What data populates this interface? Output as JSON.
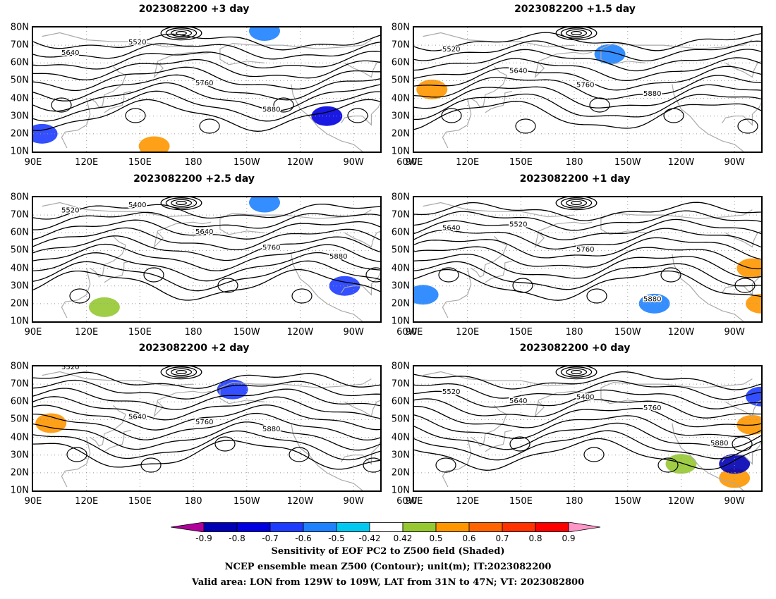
{
  "panels": [
    {
      "title": "2023082200 +3 day",
      "contours": [
        {
          "label": "5640",
          "lat": 66
        },
        {
          "label": "5520",
          "lat": 72
        },
        {
          "label": "5760",
          "lat": 49
        },
        {
          "label": "5880",
          "lat": 34
        }
      ],
      "shading": [
        {
          "lon": -105,
          "lat": 30,
          "value": -0.7
        },
        {
          "lon": -65,
          "lat": 35,
          "value": -0.6
        },
        {
          "lon": -140,
          "lat": 78,
          "value": -0.5
        },
        {
          "lon": 158,
          "lat": 13,
          "value": 0.6
        },
        {
          "lon": 95,
          "lat": 20,
          "value": -0.6
        }
      ]
    },
    {
      "title": "2023082200 +1.5 day",
      "contours": [
        {
          "label": "5520",
          "lat": 68
        },
        {
          "label": "5640",
          "lat": 56
        },
        {
          "label": "5760",
          "lat": 48
        },
        {
          "label": "5880",
          "lat": 43
        }
      ],
      "shading": [
        {
          "lon": -60,
          "lat": 77,
          "value": 0.6
        },
        {
          "lon": -55,
          "lat": 25,
          "value": -0.6
        },
        {
          "lon": -160,
          "lat": 65,
          "value": -0.5
        },
        {
          "lon": 100,
          "lat": 45,
          "value": 0.6
        }
      ]
    },
    {
      "title": "2023082200 +2.5 day",
      "contours": [
        {
          "label": "5520",
          "lat": 73
        },
        {
          "label": "5400",
          "lat": 76
        },
        {
          "label": "5640",
          "lat": 61
        },
        {
          "label": "5760",
          "lat": 52
        },
        {
          "label": "5880",
          "lat": 47
        }
      ],
      "shading": [
        {
          "lon": -60,
          "lat": 30,
          "value": -0.8
        },
        {
          "lon": -95,
          "lat": 30,
          "value": -0.6
        },
        {
          "lon": -140,
          "lat": 77,
          "value": -0.5
        },
        {
          "lon": 130,
          "lat": 18,
          "value": 0.5
        }
      ]
    },
    {
      "title": "2023082200 +1 day",
      "contours": [
        {
          "label": "5640",
          "lat": 63
        },
        {
          "label": "5520",
          "lat": 65
        },
        {
          "label": "5760",
          "lat": 51
        },
        {
          "label": "5880",
          "lat": 23
        }
      ],
      "shading": [
        {
          "lon": -80,
          "lat": 40,
          "value": 0.6
        },
        {
          "lon": -75,
          "lat": 20,
          "value": 0.6
        },
        {
          "lon": 95,
          "lat": 25,
          "value": -0.5
        },
        {
          "lon": -135,
          "lat": 20,
          "value": -0.5
        },
        {
          "lon": -65,
          "lat": 78,
          "value": 0.5
        }
      ]
    },
    {
      "title": "2023082200 +2 day",
      "contours": [
        {
          "label": "5520",
          "lat": 80
        },
        {
          "label": "5640",
          "lat": 52
        },
        {
          "label": "5760",
          "lat": 49
        },
        {
          "label": "5880",
          "lat": 45
        }
      ],
      "shading": [
        {
          "lon": -62,
          "lat": 30,
          "value": -0.8
        },
        {
          "lon": -158,
          "lat": 67,
          "value": -0.6
        },
        {
          "lon": -60,
          "lat": 79,
          "value": 0.6
        },
        {
          "lon": 100,
          "lat": 48,
          "value": 0.6
        }
      ]
    },
    {
      "title": "2023082200 +0 day",
      "contours": [
        {
          "label": "5520",
          "lat": 66
        },
        {
          "label": "5640",
          "lat": 61
        },
        {
          "label": "5400",
          "lat": 63
        },
        {
          "label": "5760",
          "lat": 57
        },
        {
          "label": "5880",
          "lat": 37
        }
      ],
      "shading": [
        {
          "lon": -90,
          "lat": 17,
          "value": 0.6
        },
        {
          "lon": -75,
          "lat": 63,
          "value": -0.6
        },
        {
          "lon": -80,
          "lat": 47,
          "value": 0.6
        },
        {
          "lon": -120,
          "lat": 25,
          "value": 0.5
        },
        {
          "lon": -90,
          "lat": 25,
          "value": -0.8
        }
      ]
    }
  ],
  "axes": {
    "lat_labels": [
      "80N",
      "70N",
      "60N",
      "50N",
      "40N",
      "30N",
      "20N",
      "10N"
    ],
    "lon_labels": [
      "90E",
      "120E",
      "150E",
      "180",
      "150W",
      "120W",
      "90W",
      "60W"
    ]
  },
  "colorbar": {
    "ticks": [
      "-0.9",
      "-0.8",
      "-0.7",
      "-0.6",
      "-0.5",
      "-0.42",
      "0.42",
      "0.5",
      "0.6",
      "0.7",
      "0.8",
      "0.9"
    ],
    "colors": [
      "#b0009c",
      "#0000b4",
      "#0000e0",
      "#1e3cff",
      "#1e82ff",
      "#00c8f0",
      "#ffffff",
      "#96c832",
      "#ff9600",
      "#ff6400",
      "#ff3200",
      "#ff0000",
      "#ff96c8"
    ]
  },
  "caption": {
    "line1": "Sensitivity of EOF PC2 to Z500 field (Shaded)",
    "line2": "NCEP ensemble mean Z500 (Contour); unit(m); IT:2023082200",
    "line3": "Valid area: LON from 129W to 109W, LAT from 31N to 47N; VT: 2023082800"
  }
}
